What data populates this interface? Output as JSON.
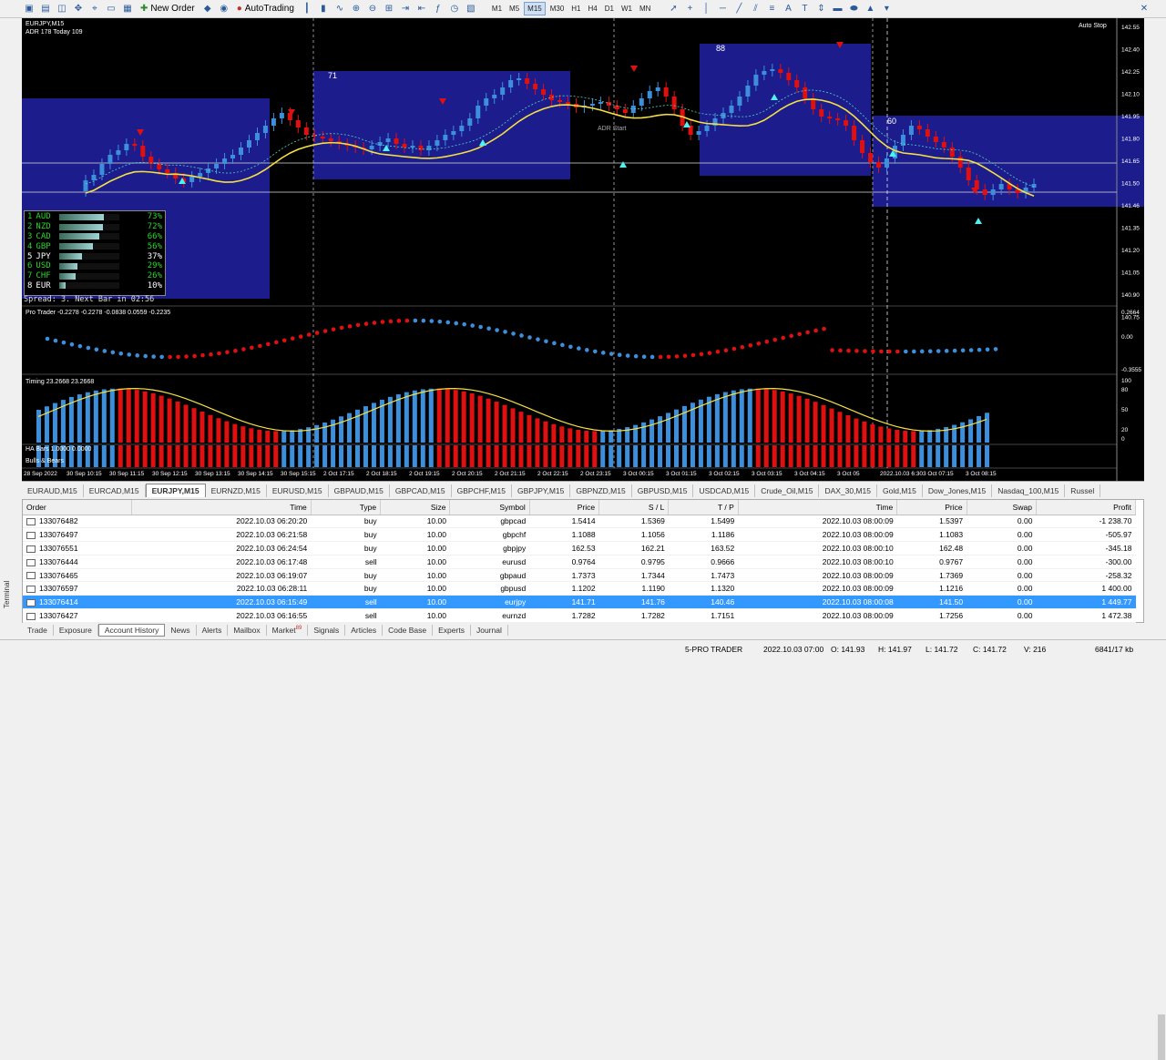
{
  "toolbar": {
    "new_order": "New Order",
    "autotrading": "AutoTrading",
    "timeframes": [
      "M1",
      "M5",
      "M15",
      "M30",
      "H1",
      "H4",
      "D1",
      "W1",
      "MN"
    ],
    "active_tf": "M15"
  },
  "chart": {
    "symbol": "EURJPY,M15",
    "adr": "ADR 178  Today 109",
    "auto_stop": "Auto Stop",
    "box_labels": [
      "71",
      "88",
      "60"
    ],
    "adr_start": "ADR Start",
    "price_axis": [
      "142.55",
      "142.40",
      "142.25",
      "142.10",
      "141.95",
      "141.80",
      "141.65",
      "141.50",
      "141.46",
      "141.35",
      "141.20",
      "141.05",
      "140.90",
      "140.75"
    ],
    "osc1_label": "Pro Trader -0.2278 -0.2278 -0.0838 0.0559 -0.2235",
    "osc1_axis": [
      "0.2664",
      "0.00",
      "-0.3555"
    ],
    "osc2_label": "Timing 23.2668 23.2668",
    "osc2_axis": [
      "100",
      "80",
      "50",
      "20",
      "0"
    ],
    "ha_label": "HA Bars 1.0000 0.0000",
    "bb_label": "Bulls & Bears",
    "time_axis": [
      "28 Sep 2022",
      "30 Sep 10:15",
      "30 Sep 11:15",
      "30 Sep 12:15",
      "30 Sep 13:15",
      "30 Sep 14:15",
      "30 Sep 15:15",
      "2 Oct 17:15",
      "2 Oct 18:15",
      "2 Oct 19:15",
      "2 Oct 20:15",
      "2 Oct 21:15",
      "2 Oct 22:15",
      "2 Oct 23:15",
      "3 Oct 00:15",
      "3 Oct 01:15",
      "3 Oct 02:15",
      "3 Oct 03:15",
      "3 Oct 04:15",
      "3 Oct 05",
      "2022.10.03 6:30",
      "3 Oct 07:15",
      "3 Oct 08:15"
    ],
    "spread": "Spread: 3.  Next Bar in 02:56",
    "strength": [
      {
        "rank": "1",
        "cur": "AUD",
        "pct": "73%",
        "v": 0.73
      },
      {
        "rank": "2",
        "cur": "NZD",
        "pct": "72%",
        "v": 0.72
      },
      {
        "rank": "3",
        "cur": "CAD",
        "pct": "66%",
        "v": 0.66
      },
      {
        "rank": "4",
        "cur": "GBP",
        "pct": "56%",
        "v": 0.56
      },
      {
        "rank": "5",
        "cur": "JPY",
        "pct": "37%",
        "v": 0.37
      },
      {
        "rank": "6",
        "cur": "USD",
        "pct": "29%",
        "v": 0.29
      },
      {
        "rank": "7",
        "cur": "CHF",
        "pct": "26%",
        "v": 0.26
      },
      {
        "rank": "8",
        "cur": "EUR",
        "pct": "10%",
        "v": 0.1
      }
    ]
  },
  "symbol_tabs": [
    "EURAUD,M15",
    "EURCAD,M15",
    "EURJPY,M15",
    "EURNZD,M15",
    "EURUSD,M15",
    "GBPAUD,M15",
    "GBPCAD,M15",
    "GBPCHF,M15",
    "GBPJPY,M15",
    "GBPNZD,M15",
    "GBPUSD,M15",
    "USDCAD,M15",
    "Crude_Oil,M15",
    "DAX_30,M15",
    "Gold,M15",
    "Dow_Jones,M15",
    "Nasdaq_100,M15",
    "Russel"
  ],
  "active_symbol_tab": "EURJPY,M15",
  "history": {
    "columns": [
      "Order",
      "Time",
      "Type",
      "Size",
      "Symbol",
      "Price",
      "S / L",
      "T / P",
      "Time",
      "Price",
      "Swap",
      "Profit"
    ],
    "rows": [
      [
        "133076482",
        "2022.10.03 06:20:20",
        "buy",
        "10.00",
        "gbpcad",
        "1.5414",
        "1.5369",
        "1.5499",
        "2022.10.03 08:00:09",
        "1.5397",
        "0.00",
        "-1 238.70"
      ],
      [
        "133076497",
        "2022.10.03 06:21:58",
        "buy",
        "10.00",
        "gbpchf",
        "1.1088",
        "1.1056",
        "1.1186",
        "2022.10.03 08:00:09",
        "1.1083",
        "0.00",
        "-505.97"
      ],
      [
        "133076551",
        "2022.10.03 06:24:54",
        "buy",
        "10.00",
        "gbpjpy",
        "162.53",
        "162.21",
        "163.52",
        "2022.10.03 08:00:10",
        "162.48",
        "0.00",
        "-345.18"
      ],
      [
        "133076444",
        "2022.10.03 06:17:48",
        "sell",
        "10.00",
        "eurusd",
        "0.9764",
        "0.9795",
        "0.9666",
        "2022.10.03 08:00:10",
        "0.9767",
        "0.00",
        "-300.00"
      ],
      [
        "133076465",
        "2022.10.03 06:19:07",
        "buy",
        "10.00",
        "gbpaud",
        "1.7373",
        "1.7344",
        "1.7473",
        "2022.10.03 08:00:09",
        "1.7369",
        "0.00",
        "-258.32"
      ],
      [
        "133076597",
        "2022.10.03 06:28:11",
        "buy",
        "10.00",
        "gbpusd",
        "1.1202",
        "1.1190",
        "1.1320",
        "2022.10.03 08:00:09",
        "1.1216",
        "0.00",
        "1 400.00"
      ],
      [
        "133076414",
        "2022.10.03 06:15:49",
        "sell",
        "10.00",
        "eurjpy",
        "141.71",
        "141.76",
        "140.46",
        "2022.10.03 08:00:08",
        "141.50",
        "0.00",
        "1 449.77"
      ],
      [
        "133076427",
        "2022.10.03 06:16:55",
        "sell",
        "10.00",
        "eurnzd",
        "1.7282",
        "1.7282",
        "1.7151",
        "2022.10.03 08:00:09",
        "1.7256",
        "0.00",
        "1 472.38"
      ]
    ],
    "selected_row": 6
  },
  "terminal_label": "Terminal",
  "bottom_tabs": [
    "Trade",
    "Exposure",
    "Account History",
    "News",
    "Alerts",
    "Mailbox",
    "Market",
    "Signals",
    "Articles",
    "Code Base",
    "Experts",
    "Journal"
  ],
  "active_bottom_tab": "Account History",
  "market_badge": "89",
  "status": {
    "profile": "5-PRO TRADER",
    "datetime": "2022.10.03 07:00",
    "open": "O: 141.93",
    "high": "H: 141.97",
    "low": "L: 141.72",
    "close": "C: 141.72",
    "volume": "V: 216",
    "traffic": "6841/17 kb"
  },
  "colors": {
    "bull": "#3d8fdc",
    "bear": "#e01010",
    "box": "#1c1c8c",
    "ma": "#f5e042",
    "accent": "#3399ff"
  }
}
